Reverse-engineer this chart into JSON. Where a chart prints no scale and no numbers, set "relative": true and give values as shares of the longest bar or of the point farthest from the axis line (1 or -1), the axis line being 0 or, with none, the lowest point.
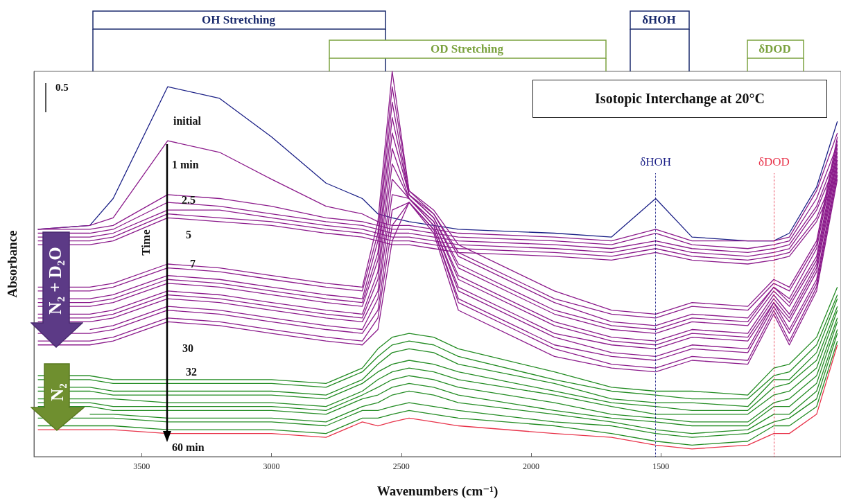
{
  "chart_data": {
    "type": "line",
    "relative": true,
    "title": "Isotopic Interchange at 20°C",
    "xlabel": "Wavenumbers (cm⁻¹)",
    "ylabel": "Absorbance",
    "xlim": [
      3915,
      806
    ],
    "xticks": [
      3500,
      3000,
      2500,
      2000,
      1500
    ],
    "x": [
      3900,
      3700,
      3610,
      3400,
      3200,
      3000,
      2790,
      2650,
      2590,
      2535,
      2470,
      2375,
      2280,
      1910,
      1690,
      1520,
      1380,
      1165,
      1065,
      1005,
      900,
      820
    ],
    "series": [
      {
        "color": "#1a1f86",
        "values": [
          0.59,
          0.6,
          0.67,
          0.96,
          0.93,
          0.83,
          0.71,
          0.67,
          0.63,
          0.62,
          0.61,
          0.6,
          0.59,
          0.58,
          0.57,
          0.67,
          0.57,
          0.56,
          0.56,
          0.58,
          0.7,
          0.87
        ]
      },
      {
        "color": "#8b1a8b",
        "values": [
          0.59,
          0.6,
          0.62,
          0.82,
          0.79,
          0.72,
          0.65,
          0.63,
          0.61,
          0.6,
          0.6,
          0.59,
          0.58,
          0.57,
          0.56,
          0.59,
          0.56,
          0.56,
          0.56,
          0.57,
          0.69,
          0.84
        ]
      },
      {
        "color": "#8b1a8b",
        "values": [
          0.59,
          0.59,
          0.6,
          0.68,
          0.67,
          0.65,
          0.62,
          0.61,
          0.6,
          0.59,
          0.59,
          0.58,
          0.57,
          0.56,
          0.55,
          0.58,
          0.55,
          0.54,
          0.55,
          0.56,
          0.67,
          0.81
        ]
      },
      {
        "color": "#8b1a8b",
        "values": [
          0.58,
          0.58,
          0.59,
          0.66,
          0.65,
          0.63,
          0.61,
          0.6,
          0.59,
          0.58,
          0.58,
          0.57,
          0.56,
          0.55,
          0.54,
          0.56,
          0.54,
          0.53,
          0.54,
          0.55,
          0.65,
          0.79
        ]
      },
      {
        "color": "#8b1a8b",
        "values": [
          0.57,
          0.57,
          0.58,
          0.64,
          0.64,
          0.62,
          0.6,
          0.59,
          0.58,
          0.57,
          0.57,
          0.56,
          0.55,
          0.54,
          0.53,
          0.55,
          0.53,
          0.52,
          0.53,
          0.54,
          0.64,
          0.77
        ]
      },
      {
        "color": "#8b1a8b",
        "values": [
          0.56,
          0.56,
          0.57,
          0.63,
          0.62,
          0.61,
          0.59,
          0.58,
          0.57,
          0.56,
          0.56,
          0.55,
          0.54,
          0.53,
          0.52,
          0.54,
          0.52,
          0.51,
          0.52,
          0.53,
          0.62,
          0.75
        ]
      },
      {
        "color": "#8b1a8b",
        "values": [
          0.55,
          0.55,
          0.56,
          0.62,
          0.61,
          0.6,
          0.58,
          0.57,
          0.56,
          0.55,
          0.55,
          0.54,
          0.53,
          0.52,
          0.51,
          0.53,
          0.51,
          0.5,
          0.51,
          0.52,
          0.61,
          0.73
        ]
      },
      {
        "color": "#8b1a8b",
        "values": [
          0.44,
          0.44,
          0.45,
          0.5,
          0.49,
          0.47,
          0.45,
          0.44,
          0.61,
          1.0,
          0.69,
          0.64,
          0.55,
          0.43,
          0.38,
          0.37,
          0.4,
          0.39,
          0.46,
          0.44,
          0.56,
          0.83
        ]
      },
      {
        "color": "#8b1a8b",
        "values": [
          0.43,
          0.43,
          0.44,
          0.49,
          0.48,
          0.46,
          0.44,
          0.43,
          0.58,
          0.96,
          0.69,
          0.63,
          0.53,
          0.41,
          0.37,
          0.36,
          0.39,
          0.38,
          0.45,
          0.43,
          0.55,
          0.82
        ]
      },
      {
        "color": "#8b1a8b",
        "values": [
          0.41,
          0.41,
          0.42,
          0.47,
          0.46,
          0.44,
          0.42,
          0.41,
          0.56,
          0.92,
          0.68,
          0.63,
          0.52,
          0.4,
          0.35,
          0.34,
          0.37,
          0.36,
          0.44,
          0.41,
          0.54,
          0.81
        ]
      },
      {
        "color": "#8b1a8b",
        "values": [
          0.4,
          0.4,
          0.41,
          0.46,
          0.45,
          0.43,
          0.41,
          0.4,
          0.53,
          0.88,
          0.68,
          0.62,
          0.5,
          0.38,
          0.34,
          0.33,
          0.36,
          0.35,
          0.44,
          0.4,
          0.52,
          0.8
        ]
      },
      {
        "color": "#8b1a8b",
        "values": [
          0.39,
          0.39,
          0.4,
          0.45,
          0.44,
          0.42,
          0.4,
          0.39,
          0.51,
          0.84,
          0.68,
          0.62,
          0.49,
          0.37,
          0.33,
          0.32,
          0.35,
          0.34,
          0.43,
          0.39,
          0.51,
          0.79
        ]
      },
      {
        "color": "#8b1a8b",
        "values": [
          0.37,
          0.37,
          0.38,
          0.43,
          0.42,
          0.4,
          0.38,
          0.37,
          0.48,
          0.8,
          0.67,
          0.61,
          0.47,
          0.35,
          0.31,
          0.3,
          0.33,
          0.32,
          0.42,
          0.37,
          0.5,
          0.78
        ]
      },
      {
        "color": "#8b1a8b",
        "values": [
          0.36,
          0.36,
          0.37,
          0.42,
          0.41,
          0.39,
          0.37,
          0.36,
          0.46,
          0.76,
          0.67,
          0.61,
          0.46,
          0.34,
          0.3,
          0.29,
          0.32,
          0.31,
          0.41,
          0.36,
          0.49,
          0.77
        ]
      },
      {
        "color": "#8b1a8b",
        "values": [
          0.35,
          0.35,
          0.36,
          0.41,
          0.4,
          0.38,
          0.36,
          0.35,
          0.43,
          0.72,
          0.67,
          0.6,
          0.44,
          0.32,
          0.29,
          0.28,
          0.31,
          0.3,
          0.4,
          0.35,
          0.48,
          0.76
        ]
      },
      {
        "color": "#8b1a8b",
        "values": [
          null,
          0.33,
          0.34,
          0.39,
          0.38,
          0.36,
          0.34,
          0.33,
          0.41,
          0.68,
          0.67,
          0.6,
          0.43,
          0.31,
          0.27,
          0.26,
          0.29,
          0.28,
          0.4,
          0.33,
          0.46,
          0.75
        ]
      },
      {
        "color": "#8b1a8b",
        "values": [
          0.32,
          0.32,
          0.33,
          0.38,
          0.37,
          0.35,
          0.33,
          0.32,
          0.38,
          0.64,
          0.66,
          0.59,
          0.41,
          0.29,
          0.26,
          0.25,
          0.28,
          0.27,
          0.39,
          0.32,
          0.45,
          0.74
        ]
      },
      {
        "color": "#8b1a8b",
        "values": [
          0.3,
          0.3,
          0.31,
          0.36,
          0.35,
          0.33,
          0.31,
          0.3,
          0.36,
          0.6,
          0.66,
          0.59,
          0.4,
          0.28,
          0.24,
          0.23,
          0.26,
          0.25,
          0.38,
          0.3,
          0.44,
          0.73
        ]
      },
      {
        "color": "#8b1a8b",
        "values": [
          0.29,
          0.29,
          0.3,
          0.35,
          0.34,
          0.32,
          0.3,
          0.29,
          0.33,
          0.56,
          0.66,
          0.58,
          0.38,
          0.26,
          0.23,
          0.22,
          0.25,
          0.24,
          0.37,
          0.29,
          0.43,
          0.72
        ]
      },
      {
        "color": "#228b22",
        "values": [
          0.21,
          0.21,
          0.2,
          0.2,
          0.2,
          0.2,
          0.19,
          0.23,
          0.28,
          0.31,
          0.32,
          0.31,
          0.28,
          0.22,
          0.18,
          0.17,
          0.17,
          0.16,
          0.23,
          0.24,
          0.31,
          0.44
        ]
      },
      {
        "color": "#228b22",
        "values": [
          0.2,
          0.2,
          0.19,
          0.19,
          0.19,
          0.19,
          0.18,
          0.22,
          0.26,
          0.29,
          0.3,
          0.29,
          0.26,
          0.2,
          0.17,
          0.16,
          0.15,
          0.15,
          0.21,
          0.22,
          0.29,
          0.42
        ]
      },
      {
        "color": "#228b22",
        "values": [
          0.18,
          0.18,
          0.17,
          0.17,
          0.17,
          0.17,
          0.16,
          0.2,
          0.24,
          0.27,
          0.28,
          0.27,
          0.24,
          0.19,
          0.15,
          0.14,
          0.14,
          0.13,
          0.2,
          0.2,
          0.27,
          0.41
        ]
      },
      {
        "color": "#228b22",
        "values": [
          0.17,
          0.17,
          0.16,
          0.16,
          0.16,
          0.16,
          0.15,
          0.19,
          0.22,
          0.24,
          0.25,
          0.24,
          0.22,
          0.17,
          0.14,
          0.13,
          0.12,
          0.12,
          0.18,
          0.19,
          0.25,
          0.39
        ]
      },
      {
        "color": "#228b22",
        "values": [
          0.15,
          0.15,
          0.15,
          0.14,
          0.14,
          0.14,
          0.13,
          0.17,
          0.2,
          0.22,
          0.23,
          0.22,
          0.2,
          0.16,
          0.13,
          0.11,
          0.11,
          0.11,
          0.16,
          0.17,
          0.23,
          0.38
        ]
      },
      {
        "color": "#228b22",
        "values": [
          0.14,
          0.14,
          0.13,
          0.13,
          0.13,
          0.13,
          0.12,
          0.16,
          0.18,
          0.2,
          0.21,
          0.2,
          0.18,
          0.14,
          0.11,
          0.1,
          0.09,
          0.09,
          0.14,
          0.15,
          0.21,
          0.36
        ]
      },
      {
        "color": "#228b22",
        "values": [
          0.13,
          0.13,
          0.12,
          0.12,
          0.12,
          0.12,
          0.11,
          0.15,
          0.16,
          0.18,
          0.19,
          0.18,
          0.16,
          0.12,
          0.1,
          0.09,
          0.08,
          0.08,
          0.13,
          0.13,
          0.19,
          0.35
        ]
      },
      {
        "color": "#228b22",
        "values": [
          null,
          0.11,
          0.11,
          0.1,
          0.1,
          0.1,
          0.09,
          0.13,
          0.14,
          0.16,
          0.17,
          0.16,
          0.14,
          0.11,
          0.09,
          0.07,
          0.06,
          0.07,
          0.11,
          0.11,
          0.17,
          0.33
        ]
      },
      {
        "color": "#228b22",
        "values": [
          0.1,
          0.1,
          0.1,
          0.09,
          0.09,
          0.09,
          0.08,
          0.12,
          0.12,
          0.13,
          0.14,
          0.13,
          0.12,
          0.09,
          0.08,
          0.06,
          0.05,
          0.06,
          0.09,
          0.1,
          0.15,
          0.32
        ]
      },
      {
        "color": "#228b22",
        "values": [
          0.08,
          0.08,
          0.08,
          0.07,
          0.07,
          0.07,
          0.06,
          0.1,
          0.1,
          0.11,
          0.12,
          0.11,
          0.1,
          0.08,
          0.06,
          0.04,
          0.03,
          0.04,
          0.08,
          0.08,
          0.13,
          0.3
        ]
      },
      {
        "color": "#e8334a",
        "values": [
          0.07,
          0.07,
          0.07,
          0.06,
          0.06,
          0.06,
          0.05,
          0.09,
          0.08,
          0.09,
          0.1,
          0.09,
          0.08,
          0.06,
          0.05,
          0.03,
          0.02,
          0.03,
          0.06,
          0.06,
          0.11,
          0.29
        ]
      }
    ],
    "ref_lines": [
      {
        "axis": "x",
        "value": 1520,
        "label": "δHOH",
        "color": "#1a1f86",
        "line_style": "dotted"
      },
      {
        "axis": "x",
        "value": 1064,
        "label": "δDOD",
        "color": "#e8334a",
        "line_style": "dotted"
      }
    ],
    "annotations": [
      "0.5",
      "N₂ + D₂O",
      "N₂",
      "Time",
      "OH Stretching",
      "OD Stretching",
      "δHOH",
      "δDOD",
      "initial",
      "1 min",
      "2.5",
      "5",
      "7",
      "30",
      "32",
      "60 min"
    ]
  }
}
